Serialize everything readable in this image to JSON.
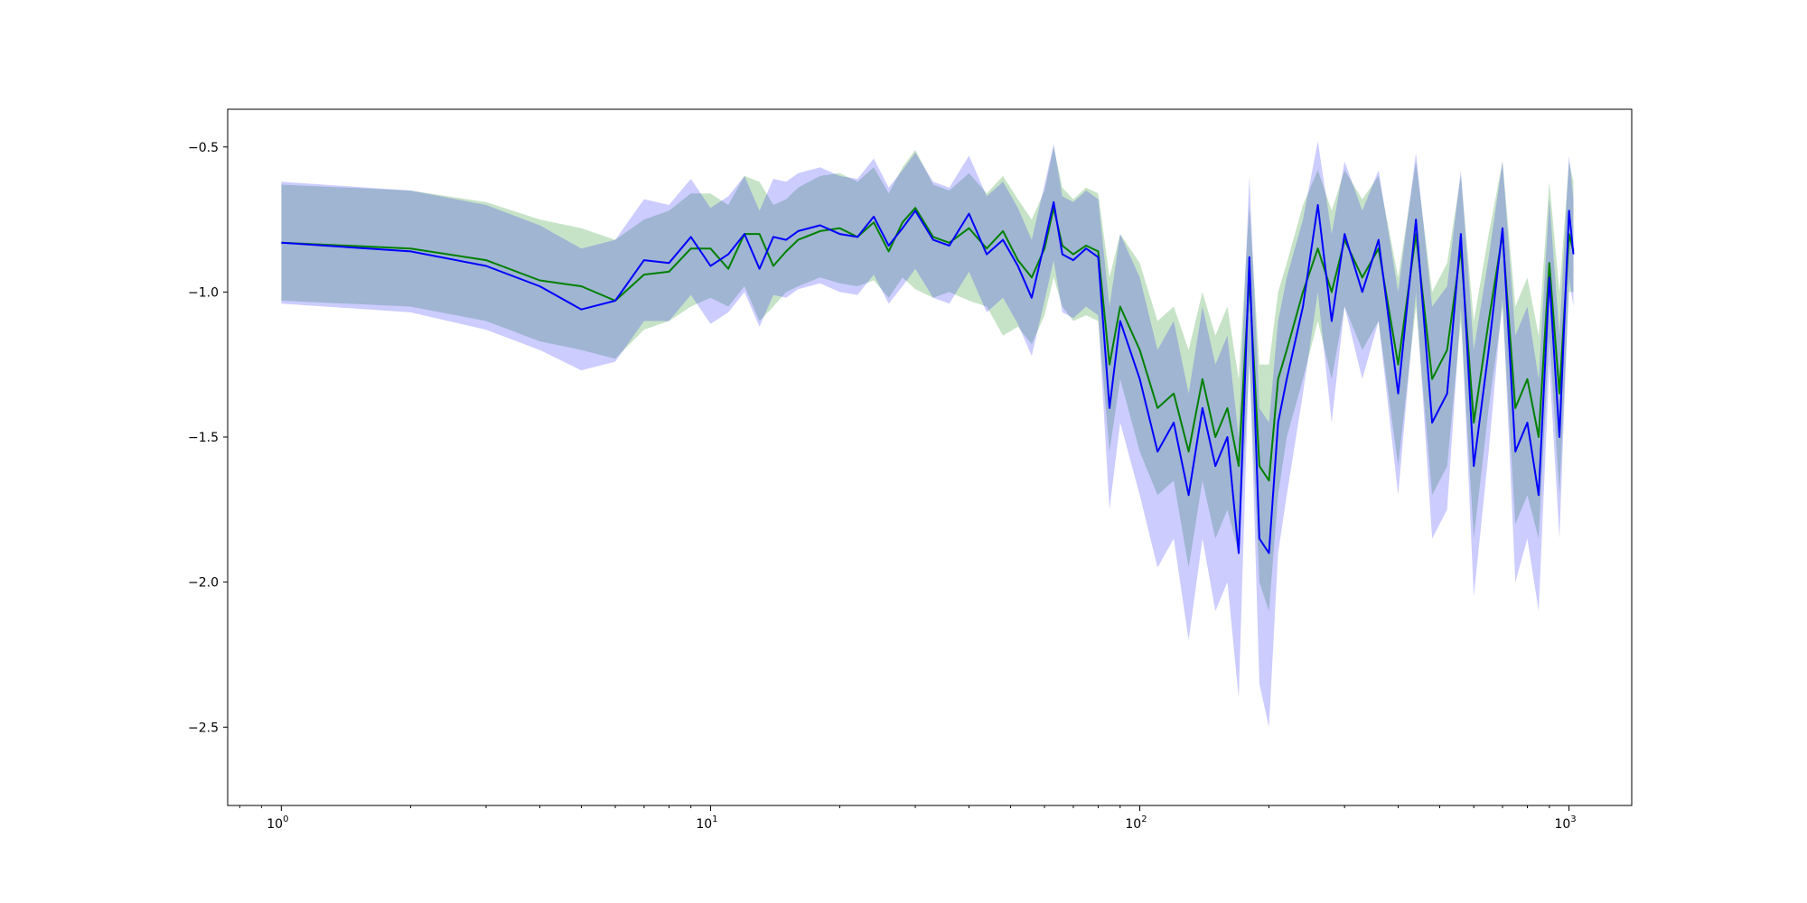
{
  "chart_data": {
    "type": "line",
    "title": "",
    "xlabel": "",
    "ylabel": "",
    "xscale": "log",
    "xlim": [
      0.75,
      1400
    ],
    "ylim": [
      -2.77,
      -0.37
    ],
    "grid": false,
    "legend": "none",
    "x_ticks": [
      {
        "value": 1,
        "base": "10",
        "exp": "0"
      },
      {
        "value": 10,
        "base": "10",
        "exp": "1"
      },
      {
        "value": 100,
        "base": "10",
        "exp": "2"
      },
      {
        "value": 1000,
        "base": "10",
        "exp": "3"
      }
    ],
    "y_ticks": [
      {
        "value": -0.5,
        "label": "−0.5"
      },
      {
        "value": -1.0,
        "label": "−1.0"
      },
      {
        "value": -1.5,
        "label": "−1.5"
      },
      {
        "value": -2.0,
        "label": "−2.0"
      },
      {
        "value": -2.5,
        "label": "−2.5"
      }
    ],
    "series": [
      {
        "color": "#008000",
        "band_color": "#008000",
        "band_opacity": 0.22,
        "x": [
          1,
          2,
          3,
          4,
          5,
          6,
          7,
          8,
          9,
          10,
          11,
          12,
          13,
          14,
          15,
          16,
          18,
          20,
          22,
          24,
          26,
          28,
          30,
          33,
          36,
          40,
          44,
          48,
          52,
          56,
          60,
          63,
          66,
          70,
          75,
          80,
          85,
          90,
          100,
          110,
          120,
          130,
          140,
          150,
          160,
          170,
          180,
          190,
          200,
          210,
          220,
          240,
          260,
          280,
          300,
          330,
          360,
          400,
          440,
          480,
          520,
          560,
          600,
          650,
          700,
          750,
          800,
          850,
          900,
          950,
          1000,
          1024
        ],
        "y": [
          -0.83,
          -0.85,
          -0.89,
          -0.96,
          -0.98,
          -1.03,
          -0.94,
          -0.93,
          -0.85,
          -0.85,
          -0.92,
          -0.8,
          -0.8,
          -0.91,
          -0.86,
          -0.82,
          -0.79,
          -0.78,
          -0.81,
          -0.76,
          -0.86,
          -0.76,
          -0.71,
          -0.81,
          -0.83,
          -0.78,
          -0.85,
          -0.79,
          -0.89,
          -0.95,
          -0.85,
          -0.71,
          -0.84,
          -0.87,
          -0.84,
          -0.86,
          -1.25,
          -1.05,
          -1.2,
          -1.4,
          -1.35,
          -1.55,
          -1.3,
          -1.5,
          -1.4,
          -1.6,
          -0.95,
          -1.6,
          -1.65,
          -1.3,
          -1.2,
          -1.0,
          -0.85,
          -1.0,
          -0.82,
          -0.95,
          -0.85,
          -1.25,
          -0.8,
          -1.3,
          -1.2,
          -0.85,
          -1.45,
          -1.1,
          -0.8,
          -1.4,
          -1.3,
          -1.5,
          -0.9,
          -1.35,
          -0.8,
          -0.86
        ],
        "lower": [
          -1.03,
          -1.05,
          -1.1,
          -1.17,
          -1.2,
          -1.23,
          -1.13,
          -1.1,
          -1.05,
          -1.02,
          -1.05,
          -0.98,
          -1.1,
          -1.05,
          -1.0,
          -0.98,
          -0.95,
          -0.97,
          -0.98,
          -0.96,
          -1.02,
          -0.95,
          -0.99,
          -1.02,
          -1.0,
          -1.03,
          -1.05,
          -1.15,
          -1.12,
          -1.18,
          -1.08,
          -0.95,
          -1.05,
          -1.1,
          -1.08,
          -1.1,
          -1.55,
          -1.3,
          -1.55,
          -1.7,
          -1.65,
          -1.95,
          -1.65,
          -1.85,
          -1.75,
          -1.9,
          -1.25,
          -2.0,
          -2.1,
          -1.7,
          -1.5,
          -1.3,
          -1.1,
          -1.3,
          -1.05,
          -1.2,
          -1.1,
          -1.6,
          -1.05,
          -1.7,
          -1.6,
          -1.1,
          -1.85,
          -1.4,
          -1.05,
          -1.8,
          -1.7,
          -1.85,
          -1.15,
          -1.7,
          -1.0,
          -1.0
        ],
        "upper": [
          -0.63,
          -0.65,
          -0.69,
          -0.75,
          -0.78,
          -0.82,
          -0.75,
          -0.72,
          -0.66,
          -0.66,
          -0.7,
          -0.6,
          -0.62,
          -0.7,
          -0.68,
          -0.64,
          -0.6,
          -0.59,
          -0.62,
          -0.57,
          -0.66,
          -0.57,
          -0.51,
          -0.63,
          -0.65,
          -0.59,
          -0.66,
          -0.6,
          -0.68,
          -0.75,
          -0.65,
          -0.5,
          -0.64,
          -0.68,
          -0.64,
          -0.66,
          -0.95,
          -0.8,
          -0.9,
          -1.1,
          -1.05,
          -1.2,
          -1.0,
          -1.15,
          -1.05,
          -1.3,
          -0.7,
          -1.25,
          -1.25,
          -1.0,
          -0.9,
          -0.7,
          -0.58,
          -0.72,
          -0.58,
          -0.68,
          -0.6,
          -0.95,
          -0.55,
          -1.0,
          -0.9,
          -0.6,
          -1.1,
          -0.8,
          -0.55,
          -1.05,
          -0.95,
          -1.15,
          -0.62,
          -1.0,
          -0.55,
          -0.62
        ]
      },
      {
        "color": "#0000ff",
        "band_color": "#0000ff",
        "band_opacity": 0.2,
        "x": [
          1,
          2,
          3,
          4,
          5,
          6,
          7,
          8,
          9,
          10,
          11,
          12,
          13,
          14,
          15,
          16,
          18,
          20,
          22,
          24,
          26,
          28,
          30,
          33,
          36,
          40,
          44,
          48,
          52,
          56,
          60,
          63,
          66,
          70,
          75,
          80,
          85,
          90,
          100,
          110,
          120,
          130,
          140,
          150,
          160,
          170,
          180,
          190,
          200,
          210,
          220,
          240,
          260,
          280,
          300,
          330,
          360,
          400,
          440,
          480,
          520,
          560,
          600,
          650,
          700,
          750,
          800,
          850,
          900,
          950,
          1000,
          1024
        ],
        "y": [
          -0.83,
          -0.86,
          -0.91,
          -0.98,
          -1.06,
          -1.03,
          -0.89,
          -0.9,
          -0.81,
          -0.91,
          -0.87,
          -0.8,
          -0.92,
          -0.81,
          -0.82,
          -0.79,
          -0.77,
          -0.8,
          -0.81,
          -0.74,
          -0.84,
          -0.78,
          -0.72,
          -0.82,
          -0.84,
          -0.73,
          -0.87,
          -0.82,
          -0.91,
          -1.02,
          -0.83,
          -0.69,
          -0.87,
          -0.89,
          -0.85,
          -0.88,
          -1.4,
          -1.1,
          -1.3,
          -1.55,
          -1.45,
          -1.7,
          -1.4,
          -1.6,
          -1.5,
          -1.9,
          -0.88,
          -1.85,
          -1.9,
          -1.45,
          -1.3,
          -1.05,
          -0.7,
          -1.1,
          -0.8,
          -1.0,
          -0.82,
          -1.35,
          -0.75,
          -1.45,
          -1.35,
          -0.8,
          -1.6,
          -1.2,
          -0.78,
          -1.55,
          -1.45,
          -1.7,
          -0.95,
          -1.5,
          -0.72,
          -0.87
        ],
        "lower": [
          -1.04,
          -1.07,
          -1.13,
          -1.2,
          -1.27,
          -1.24,
          -1.1,
          -1.1,
          -1.01,
          -1.11,
          -1.07,
          -1.0,
          -1.12,
          -1.01,
          -1.02,
          -0.99,
          -0.97,
          -1.0,
          -1.01,
          -0.94,
          -1.04,
          -0.98,
          -0.92,
          -1.02,
          -1.04,
          -0.93,
          -1.07,
          -1.02,
          -1.11,
          -1.22,
          -1.03,
          -0.89,
          -1.07,
          -1.09,
          -1.05,
          -1.08,
          -1.75,
          -1.45,
          -1.7,
          -1.95,
          -1.85,
          -2.2,
          -1.85,
          -2.1,
          -2.0,
          -2.4,
          -1.2,
          -2.35,
          -2.5,
          -1.9,
          -1.7,
          -1.35,
          -1.0,
          -1.45,
          -1.05,
          -1.3,
          -1.1,
          -1.7,
          -1.0,
          -1.85,
          -1.75,
          -1.05,
          -2.05,
          -1.55,
          -1.02,
          -2.0,
          -1.85,
          -2.1,
          -1.25,
          -1.85,
          -0.95,
          -1.05
        ],
        "upper": [
          -0.62,
          -0.65,
          -0.7,
          -0.77,
          -0.85,
          -0.82,
          -0.68,
          -0.7,
          -0.61,
          -0.71,
          -0.67,
          -0.6,
          -0.72,
          -0.61,
          -0.62,
          -0.59,
          -0.57,
          -0.6,
          -0.61,
          -0.54,
          -0.64,
          -0.58,
          -0.52,
          -0.62,
          -0.64,
          -0.53,
          -0.67,
          -0.62,
          -0.71,
          -0.82,
          -0.63,
          -0.49,
          -0.67,
          -0.69,
          -0.65,
          -0.68,
          -1.05,
          -0.8,
          -0.95,
          -1.2,
          -1.1,
          -1.35,
          -1.05,
          -1.25,
          -1.15,
          -1.5,
          -0.6,
          -1.4,
          -1.45,
          -1.1,
          -0.95,
          -0.75,
          -0.48,
          -0.8,
          -0.55,
          -0.72,
          -0.58,
          -1.0,
          -0.52,
          -1.05,
          -0.98,
          -0.58,
          -1.2,
          -0.88,
          -0.55,
          -1.15,
          -1.05,
          -1.3,
          -0.68,
          -1.15,
          -0.53,
          -0.68
        ]
      }
    ]
  }
}
